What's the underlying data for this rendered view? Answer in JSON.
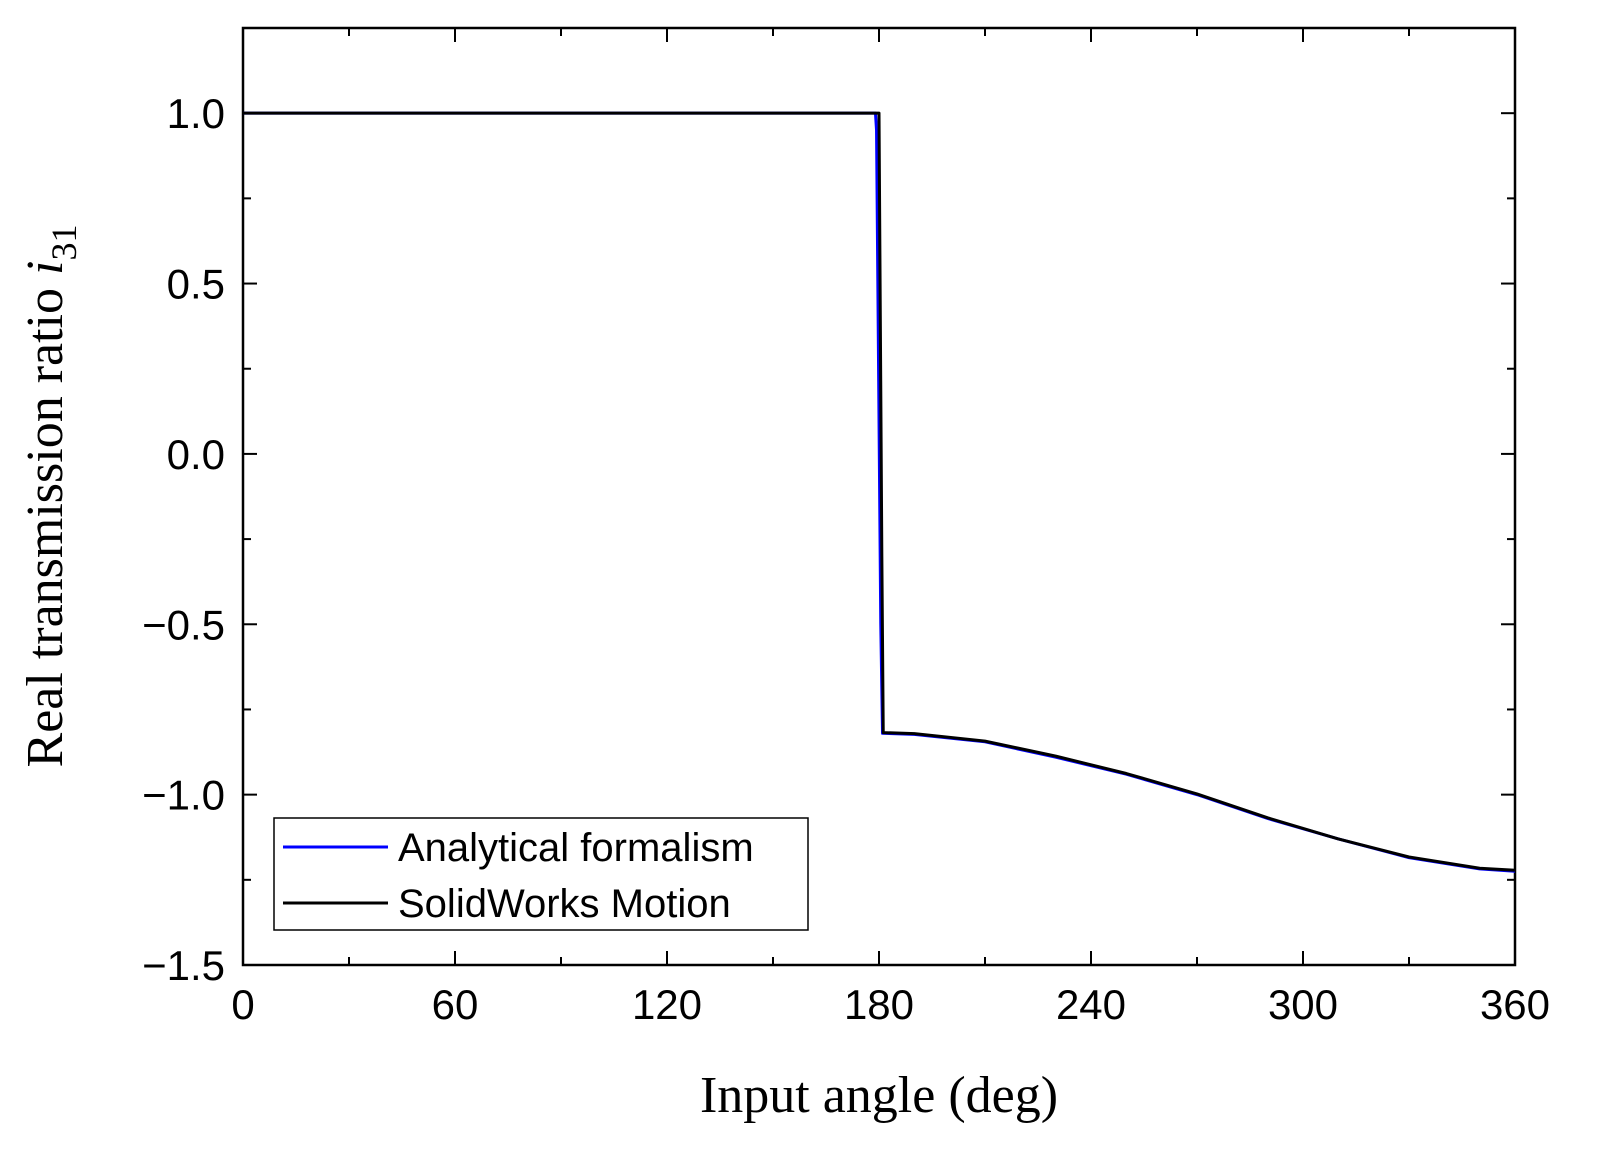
{
  "chart_data": {
    "type": "line",
    "xlabel": "Input angle (deg)",
    "ylabel": {
      "main": "Real transmission ratio ",
      "symbol": "i",
      "subscript": "31"
    },
    "xlim": [
      0,
      360
    ],
    "ylim": [
      -1.5,
      1.25
    ],
    "x_ticks": [
      0,
      60,
      120,
      180,
      240,
      300,
      360
    ],
    "x_tick_labels": [
      "0",
      "60",
      "120",
      "180",
      "240",
      "300",
      "360"
    ],
    "y_ticks": [
      -1.5,
      -1.0,
      -0.5,
      0.0,
      0.5,
      1.0
    ],
    "y_tick_labels": [
      "−1.5",
      "−1.0",
      "−0.5",
      "0.0",
      "0.5",
      "1.0"
    ],
    "grid": false,
    "legend_position": "bottom-left",
    "series": [
      {
        "name": "Analytical formalism",
        "color": "#0000ff",
        "x": [
          0,
          179,
          179.3,
          180.5,
          181,
          190,
          210,
          230,
          250,
          270,
          290,
          310,
          330,
          350,
          360
        ],
        "y": [
          1.0,
          1.0,
          0.95,
          -0.5,
          -0.82,
          -0.823,
          -0.845,
          -0.89,
          -0.94,
          -1.0,
          -1.07,
          -1.13,
          -1.185,
          -1.218,
          -1.225
        ]
      },
      {
        "name": "SolidWorks Motion",
        "color": "#000000",
        "x": [
          0,
          180,
          180.8,
          181.2,
          190,
          210,
          230,
          250,
          270,
          290,
          310,
          330,
          350,
          360
        ],
        "y": [
          1.0,
          1.0,
          -0.3,
          -0.818,
          -0.821,
          -0.843,
          -0.887,
          -0.938,
          -0.998,
          -1.068,
          -1.13,
          -1.183,
          -1.216,
          -1.222
        ]
      }
    ]
  }
}
